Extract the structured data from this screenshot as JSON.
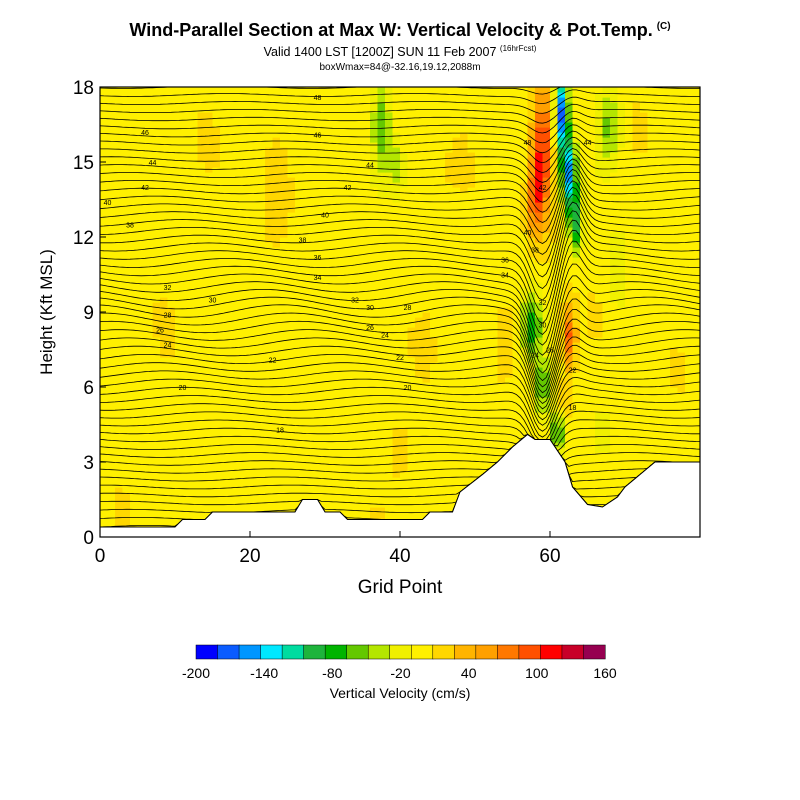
{
  "header": {
    "title": "Wind-Parallel Section at Max W: Vertical Velocity & Pot.Temp.",
    "title_mark": "(C)",
    "subtitle_main": "Valid 1400 LST [1200Z] SUN 11 Feb 2007",
    "subtitle_note": "(16hrFcst)",
    "subtitle2": "boxWmax=84@-32.16,19.12,2088m"
  },
  "chart_data": {
    "type": "heatmap",
    "xlabel": "Grid Point",
    "ylabel": "Height (Kft MSL)",
    "xlim": [
      0,
      80
    ],
    "ylim": [
      0,
      18
    ],
    "x_ticks": [
      0,
      20,
      40,
      60
    ],
    "y_ticks": [
      0,
      3,
      6,
      9,
      12,
      15,
      18
    ],
    "colorbar": {
      "label": "Vertical Velocity (cm/s)",
      "tick_labels": [
        "-200",
        "-140",
        "-80",
        "-20",
        "40",
        "100",
        "160"
      ],
      "colors": [
        "#0000ff",
        "#0a5cff",
        "#0096ff",
        "#00e8ff",
        "#00dca0",
        "#1eb43c",
        "#00b400",
        "#64c800",
        "#b4e600",
        "#f0f000",
        "#fff000",
        "#ffd700",
        "#ffb400",
        "#ffa000",
        "#ff7800",
        "#ff5000",
        "#ff0000",
        "#c80028",
        "#960050"
      ],
      "range": [
        -200,
        160
      ]
    },
    "terrain": [
      [
        0,
        0.4
      ],
      [
        10,
        0.4
      ],
      [
        11,
        0.7
      ],
      [
        14,
        0.7
      ],
      [
        15,
        1.0
      ],
      [
        26,
        1.0
      ],
      [
        27,
        1.5
      ],
      [
        29,
        1.5
      ],
      [
        30,
        1.0
      ],
      [
        32,
        1.0
      ],
      [
        33,
        0.7
      ],
      [
        43,
        0.7
      ],
      [
        44,
        1.0
      ],
      [
        47,
        1.0
      ],
      [
        48,
        1.8
      ],
      [
        51,
        2.5
      ],
      [
        53,
        3.0
      ],
      [
        55,
        3.6
      ],
      [
        57,
        4.1
      ],
      [
        58,
        3.9
      ],
      [
        60,
        3.9
      ],
      [
        62,
        3.0
      ],
      [
        63,
        2.0
      ],
      [
        65,
        1.3
      ],
      [
        67,
        1.2
      ],
      [
        69,
        1.6
      ],
      [
        70,
        2.0
      ],
      [
        72,
        2.5
      ],
      [
        74,
        3.0
      ],
      [
        80,
        3.0
      ]
    ],
    "features": [
      {
        "x": 59.0,
        "y": 15.5,
        "wx": 1.4,
        "wy": 2.6,
        "w": 110
      },
      {
        "x": 58.0,
        "y": 13.5,
        "wx": 1.0,
        "wy": 1.5,
        "w": 70
      },
      {
        "x": 62.5,
        "y": 8.0,
        "wx": 0.9,
        "wy": 1.3,
        "w": 90
      },
      {
        "x": 62.0,
        "y": 5.5,
        "wx": 0.6,
        "wy": 0.9,
        "w": 55
      },
      {
        "x": 61.5,
        "y": 17.0,
        "wx": 0.9,
        "wy": 1.6,
        "w": -180
      },
      {
        "x": 62.5,
        "y": 14.5,
        "wx": 1.0,
        "wy": 1.5,
        "w": -150
      },
      {
        "x": 63.5,
        "y": 12.5,
        "wx": 0.9,
        "wy": 1.2,
        "w": -95
      },
      {
        "x": 57.5,
        "y": 8.5,
        "wx": 1.4,
        "wy": 1.4,
        "w": -80
      },
      {
        "x": 59.0,
        "y": 6.0,
        "wx": 1.0,
        "wy": 1.2,
        "w": -70
      },
      {
        "x": 61.0,
        "y": 4.2,
        "wx": 0.8,
        "wy": 0.8,
        "w": -95
      },
      {
        "x": 37.5,
        "y": 16.5,
        "wx": 1.4,
        "wy": 2.2,
        "w": -70
      },
      {
        "x": 39.5,
        "y": 14.8,
        "wx": 1.0,
        "wy": 1.0,
        "w": -45
      },
      {
        "x": 68.0,
        "y": 16.5,
        "wx": 1.6,
        "wy": 1.5,
        "w": -60
      },
      {
        "x": 69.0,
        "y": 10.5,
        "wx": 1.2,
        "wy": 1.6,
        "w": -30
      },
      {
        "x": 67.0,
        "y": 4.2,
        "wx": 0.8,
        "wy": 0.8,
        "w": -35
      },
      {
        "x": 40.0,
        "y": 3.5,
        "wx": 1.2,
        "wy": 1.2,
        "w": 25
      },
      {
        "x": 23.0,
        "y": 14.0,
        "wx": 1.8,
        "wy": 3.0,
        "w": 12
      },
      {
        "x": 45.0,
        "y": 12.0,
        "wx": 1.8,
        "wy": 3.0,
        "w": 10
      },
      {
        "x": 8.0,
        "y": 16.0,
        "wx": 1.5,
        "wy": 2.0,
        "w": 8
      },
      {
        "x": 54.0,
        "y": 8.0,
        "wx": 1.5,
        "wy": 1.5,
        "w": 15
      },
      {
        "x": 77.0,
        "y": 14.0,
        "wx": 1.5,
        "wy": 3.0,
        "w": 10
      }
    ],
    "contour_labels": [
      {
        "text": "48",
        "x": 29,
        "y": 17.6
      },
      {
        "text": "46",
        "x": 6,
        "y": 16.2
      },
      {
        "text": "46",
        "x": 29,
        "y": 16.1
      },
      {
        "text": "44",
        "x": 7,
        "y": 15.0
      },
      {
        "text": "44",
        "x": 36,
        "y": 14.9
      },
      {
        "text": "42",
        "x": 6,
        "y": 14.0
      },
      {
        "text": "42",
        "x": 33,
        "y": 14.0
      },
      {
        "text": "40",
        "x": 1,
        "y": 13.4
      },
      {
        "text": "40",
        "x": 30,
        "y": 12.9
      },
      {
        "text": "38",
        "x": 4,
        "y": 12.5
      },
      {
        "text": "38",
        "x": 27,
        "y": 11.9
      },
      {
        "text": "36",
        "x": 29,
        "y": 11.2
      },
      {
        "text": "34",
        "x": 29,
        "y": 10.4
      },
      {
        "text": "32",
        "x": 9,
        "y": 10.0
      },
      {
        "text": "30",
        "x": 15,
        "y": 9.5
      },
      {
        "text": "32",
        "x": 34,
        "y": 9.5
      },
      {
        "text": "30",
        "x": 36,
        "y": 9.2
      },
      {
        "text": "28",
        "x": 41,
        "y": 9.2
      },
      {
        "text": "28",
        "x": 9,
        "y": 8.9
      },
      {
        "text": "26",
        "x": 36,
        "y": 8.4
      },
      {
        "text": "26",
        "x": 8,
        "y": 8.3
      },
      {
        "text": "24",
        "x": 38,
        "y": 8.1
      },
      {
        "text": "24",
        "x": 9,
        "y": 7.7
      },
      {
        "text": "22",
        "x": 40,
        "y": 7.2
      },
      {
        "text": "22",
        "x": 23,
        "y": 7.1
      },
      {
        "text": "20",
        "x": 11,
        "y": 6.0
      },
      {
        "text": "20",
        "x": 41,
        "y": 6.0
      },
      {
        "text": "18",
        "x": 24,
        "y": 4.3
      },
      {
        "text": "48",
        "x": 57,
        "y": 15.8
      },
      {
        "text": "44",
        "x": 65,
        "y": 15.8
      },
      {
        "text": "42",
        "x": 59,
        "y": 14.0
      },
      {
        "text": "40",
        "x": 57,
        "y": 12.2
      },
      {
        "text": "38",
        "x": 58,
        "y": 11.5
      },
      {
        "text": "36",
        "x": 54,
        "y": 11.1
      },
      {
        "text": "34",
        "x": 54,
        "y": 10.5
      },
      {
        "text": "32",
        "x": 59,
        "y": 9.4
      },
      {
        "text": "30",
        "x": 59,
        "y": 8.5
      },
      {
        "text": "28",
        "x": 60,
        "y": 7.5
      },
      {
        "text": "24",
        "x": 58,
        "y": 7.3
      },
      {
        "text": "22",
        "x": 63,
        "y": 6.7
      },
      {
        "text": "18",
        "x": 63,
        "y": 5.2
      }
    ]
  }
}
